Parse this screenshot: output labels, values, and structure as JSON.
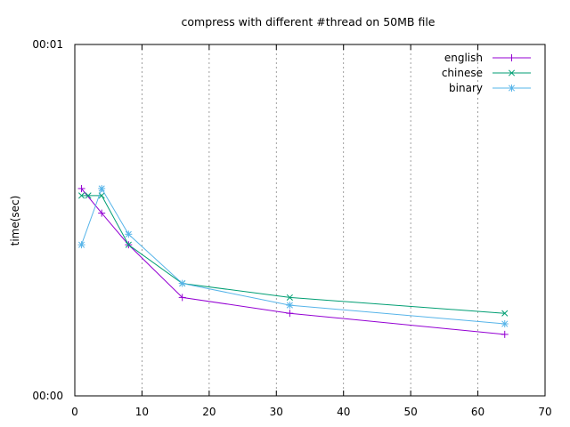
{
  "chart_data": {
    "type": "line",
    "title": "compress with different #thread on 50MB file",
    "xlabel": "",
    "ylabel": "time(sec)",
    "xlim": [
      0,
      70
    ],
    "ylim": [
      0,
      1
    ],
    "x_ticks": [
      0,
      10,
      20,
      30,
      40,
      50,
      60,
      70
    ],
    "y_tick_labels": [
      {
        "value": 0,
        "label": "00:00"
      },
      {
        "value": 1,
        "label": "00:01"
      }
    ],
    "grid": "vertical-dashed",
    "legend_position": "top-right",
    "series": [
      {
        "name": "english",
        "color": "#9400d3",
        "marker": "plus",
        "x": [
          1,
          4,
          8,
          16,
          32,
          64
        ],
        "y": [
          0.59,
          0.52,
          0.43,
          0.28,
          0.235,
          0.175
        ]
      },
      {
        "name": "chinese",
        "color": "#009e73",
        "marker": "cross",
        "x": [
          1,
          2,
          4,
          8,
          16,
          32,
          64
        ],
        "y": [
          0.57,
          0.57,
          0.57,
          0.43,
          0.32,
          0.28,
          0.235
        ]
      },
      {
        "name": "binary",
        "color": "#56b4e9",
        "marker": "star",
        "x": [
          1,
          4,
          8,
          16,
          32,
          64
        ],
        "y": [
          0.43,
          0.59,
          0.46,
          0.32,
          0.258,
          0.205
        ]
      }
    ]
  }
}
